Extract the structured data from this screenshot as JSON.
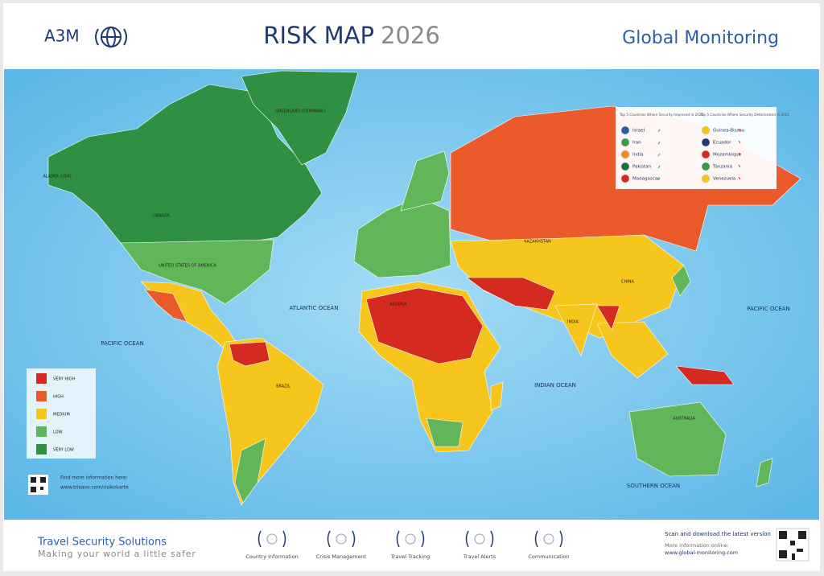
{
  "header": {
    "logo": "A3M",
    "title": "RISK MAP",
    "year": "2026",
    "brand": "Global Monitoring"
  },
  "oceans": [
    "ATLANTIC OCEAN",
    "PACIFIC OCEAN",
    "PACIFIC OCEAN",
    "INDIAN OCEAN",
    "SOUTHERN OCEAN"
  ],
  "countries": [
    "ALASKA (USA)",
    "GREENLAND (DENMARK)",
    "CANADA",
    "UNITED STATES OF AMERICA",
    "BRAZIL",
    "KAZAKHSTAN",
    "CHINA",
    "INDIA",
    "AUSTRALIA",
    "ALGERIA"
  ],
  "legend": {
    "items": [
      {
        "label": "VERY HIGH",
        "color": "#d42a1f"
      },
      {
        "label": "HIGH",
        "color": "#ea5a2a"
      },
      {
        "label": "MEDIUM",
        "color": "#f6c61c"
      },
      {
        "label": "LOW",
        "color": "#62b65a"
      },
      {
        "label": "VERY LOW",
        "color": "#2f8f42"
      }
    ]
  },
  "top5": {
    "improved": {
      "title": "Top 5 Countries Where Security Improved in 2025",
      "items": [
        "Israel",
        "Iran",
        "India",
        "Pakistan",
        "Madagascar"
      ]
    },
    "deteriorated": {
      "title": "Top 5 Countries Where Security Deteriorated in 2025",
      "items": [
        "Guinea-Bissau",
        "Ecuador",
        "Mozambique",
        "Tanzania",
        "Venezuela"
      ]
    }
  },
  "info": {
    "text": "Find more information here:",
    "url": "www.trisavo.com/risikokarte"
  },
  "footer": {
    "title": "Travel Security Solutions",
    "tagline": "Making your world a little safer",
    "services": [
      "Country Information",
      "Crisis Management",
      "Travel Tracking",
      "Travel Alerts",
      "Communication"
    ],
    "scan": "Scan and download the latest version",
    "more": "More information online:",
    "url": "www.global-monitoring.com"
  }
}
